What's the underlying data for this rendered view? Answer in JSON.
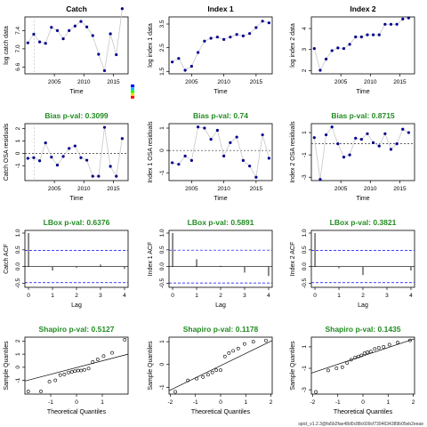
{
  "footer": "spict_v1.2.3@fa5b2fae48d0c88c609cf7394634389b05eb2eeae",
  "colors": {
    "point": "#00008B",
    "title_black": "#000000",
    "title_green": "#228B22",
    "ref_line": "#0000FF",
    "line": "#c8c8c8",
    "axes": "#000000"
  },
  "legend_colors": [
    "#0000FF",
    "#00BFFF",
    "#00FF00",
    "#FFD700",
    "#FF0000"
  ],
  "chart_data": [
    {
      "type": "line",
      "title": "Catch",
      "title_color": "black",
      "xlabel": "Time",
      "ylabel": "log catch data",
      "xlim": [
        2000.0,
        2017.5
      ],
      "ylim": [
        6.45,
        7.7
      ],
      "xticks": [
        2005,
        2010,
        2015
      ],
      "yticks": [
        6.6,
        7.0,
        7.4
      ],
      "x": [
        2000.5,
        2001.5,
        2002.5,
        2003.5,
        2004.5,
        2005.5,
        2006.5,
        2007.5,
        2008.5,
        2009.5,
        2010.5,
        2011.5,
        2012.5,
        2013.5,
        2014.5,
        2015.5,
        2016.5
      ],
      "y": [
        7.13,
        7.32,
        7.15,
        7.12,
        7.47,
        7.4,
        7.22,
        7.4,
        7.5,
        7.6,
        7.48,
        7.29,
        6.88,
        6.52,
        7.33,
        6.87,
        7.88
      ],
      "vline": 2001.6,
      "legend": true
    },
    {
      "type": "line",
      "title": "Index 1",
      "title_color": "black",
      "xlabel": "Time",
      "ylabel": "log index 1 data",
      "xlim": [
        2001.5,
        2017.5
      ],
      "ylim": [
        1.4,
        3.8
      ],
      "xticks": [
        2005,
        2010,
        2015
      ],
      "yticks": [
        1.5,
        2.5,
        3.5
      ],
      "x": [
        2002.0,
        2003.0,
        2004.0,
        2005.0,
        2006.0,
        2007.0,
        2008.0,
        2009.0,
        2010.0,
        2011.0,
        2012.0,
        2013.0,
        2014.0,
        2015.0,
        2016.0,
        2017.0
      ],
      "y": [
        1.9,
        2.05,
        1.55,
        1.72,
        2.3,
        2.78,
        2.9,
        2.95,
        2.85,
        2.95,
        3.06,
        3.0,
        3.1,
        3.35,
        3.62,
        3.55
      ]
    },
    {
      "type": "line",
      "title": "Index 2",
      "title_color": "black",
      "xlabel": "Time",
      "ylabel": "log index 2 data",
      "xlim": [
        2000.0,
        2017.5
      ],
      "ylim": [
        1.85,
        4.55
      ],
      "xticks": [
        2005,
        2010,
        2015
      ],
      "yticks": [
        2.0,
        3.0,
        4.0
      ],
      "x": [
        2000.5,
        2001.5,
        2002.5,
        2003.5,
        2004.5,
        2005.5,
        2006.5,
        2007.5,
        2008.5,
        2009.5,
        2010.5,
        2011.5,
        2012.5,
        2013.5,
        2014.5,
        2015.5,
        2016.5
      ],
      "y": [
        3.05,
        2.02,
        2.55,
        2.95,
        3.08,
        3.05,
        3.25,
        3.6,
        3.6,
        3.7,
        3.7,
        3.7,
        4.2,
        4.2,
        4.2,
        4.45,
        4.5
      ]
    },
    {
      "type": "line",
      "title": "Bias p-val: 0.3099",
      "title_color": "green",
      "xlabel": "Time",
      "ylabel": "Catch OSA residuals",
      "xlim": [
        2000.0,
        2017.5
      ],
      "ylim": [
        -2.2,
        2.4
      ],
      "xticks": [
        2005,
        2010,
        2015
      ],
      "yticks": [
        -1,
        0,
        1,
        2
      ],
      "x": [
        2000.5,
        2001.5,
        2002.5,
        2003.5,
        2004.5,
        2005.5,
        2006.5,
        2007.5,
        2008.5,
        2009.5,
        2010.5,
        2011.5,
        2012.5,
        2013.5,
        2014.5,
        2015.5,
        2016.5
      ],
      "y": [
        -0.4,
        -0.35,
        -0.6,
        0.85,
        -0.3,
        -0.95,
        -0.25,
        0.4,
        0.6,
        -0.35,
        -0.55,
        -1.85,
        -1.85,
        2.1,
        -1.05,
        -1.85,
        1.2
      ],
      "vline": 2001.6,
      "hline": 0
    },
    {
      "type": "line",
      "title": "Bias p-val: 0.74",
      "title_color": "green",
      "xlabel": "Time",
      "ylabel": "Index 1 OSA residuals",
      "xlim": [
        2001.5,
        2017.5
      ],
      "ylim": [
        -1.35,
        1.2
      ],
      "xticks": [
        2005,
        2010,
        2015
      ],
      "yticks": [
        -1.0,
        0.0,
        1.0
      ],
      "x": [
        2002.0,
        2003.0,
        2004.0,
        2005.0,
        2006.0,
        2007.0,
        2008.0,
        2009.0,
        2010.0,
        2011.0,
        2012.0,
        2013.0,
        2014.0,
        2015.0,
        2016.0,
        2017.0
      ],
      "y": [
        -0.55,
        -0.62,
        -0.25,
        -0.45,
        1.05,
        1.0,
        0.5,
        0.9,
        -0.25,
        0.35,
        0.6,
        -0.45,
        -0.7,
        -1.2,
        0.7,
        -0.35
      ],
      "hline": 0
    },
    {
      "type": "line",
      "title": "Bias p-val: 0.8715",
      "title_color": "green",
      "xlabel": "Time",
      "ylabel": "Index 2 OSA residuals",
      "xlim": [
        2000.0,
        2017.5
      ],
      "ylim": [
        -3.3,
        1.8
      ],
      "xticks": [
        2005,
        2010,
        2015
      ],
      "yticks": [
        -3,
        -1,
        1
      ],
      "x": [
        2000.5,
        2001.5,
        2002.5,
        2003.5,
        2004.5,
        2005.5,
        2006.5,
        2007.5,
        2008.5,
        2009.5,
        2010.5,
        2011.5,
        2012.5,
        2013.5,
        2014.5,
        2015.5,
        2016.5
      ],
      "y": [
        0.55,
        -3.2,
        0.8,
        1.5,
        0.0,
        -1.2,
        -1.0,
        0.5,
        0.4,
        0.9,
        0.1,
        -0.2,
        0.9,
        -0.5,
        0.0,
        1.3,
        1.0
      ],
      "hline": 0
    },
    {
      "type": "acf",
      "title": "LBox p-val: 0.6376",
      "title_color": "green",
      "xlabel": "Lag",
      "ylabel": "Catch ACF",
      "xlim": [
        -0.15,
        4.15
      ],
      "ylim": [
        -0.62,
        1.08
      ],
      "xticks": [
        0,
        1,
        2,
        3,
        4
      ],
      "yticks": [
        -0.5,
        0.0,
        0.5,
        1.0
      ],
      "lags": [
        0,
        1,
        2,
        3,
        4
      ],
      "acf": [
        1.0,
        -0.12,
        -0.04,
        0.06,
        -0.07
      ],
      "conf": 0.48
    },
    {
      "type": "acf",
      "title": "LBox p-val: 0.5891",
      "title_color": "green",
      "xlabel": "Lag",
      "ylabel": "Index 1 ACF",
      "xlim": [
        -0.15,
        4.15
      ],
      "ylim": [
        -0.62,
        1.08
      ],
      "xticks": [
        0,
        1,
        2,
        3,
        4
      ],
      "yticks": [
        -0.5,
        0.0,
        0.5,
        1.0
      ],
      "lags": [
        0,
        1,
        2,
        3,
        4
      ],
      "acf": [
        1.0,
        0.22,
        0.02,
        -0.18,
        -0.28
      ],
      "conf": 0.49
    },
    {
      "type": "acf",
      "title": "LBox p-val: 0.3821",
      "title_color": "green",
      "xlabel": "Lag",
      "ylabel": "Index 2 ACF",
      "xlim": [
        -0.15,
        4.15
      ],
      "ylim": [
        -0.62,
        1.08
      ],
      "xticks": [
        0,
        1,
        2,
        3,
        4
      ],
      "yticks": [
        -0.5,
        0.0,
        0.5,
        1.0
      ],
      "lags": [
        0,
        1,
        2,
        3,
        4
      ],
      "acf": [
        1.0,
        -0.05,
        -0.25,
        0.0,
        -0.12
      ],
      "conf": 0.48
    },
    {
      "type": "scatter",
      "title": "Shapiro p-val: 0.5127",
      "title_color": "green",
      "xlabel": "Theoretical Quantiles",
      "ylabel": "Sample Quantiles",
      "xlim": [
        -2.0,
        2.0
      ],
      "ylim": [
        -2.05,
        2.3
      ],
      "xticks": [
        -1,
        0,
        1
      ],
      "yticks": [
        -1,
        0,
        1,
        2
      ],
      "x": [
        -1.87,
        -1.38,
        -1.05,
        -0.82,
        -0.63,
        -0.47,
        -0.31,
        -0.18,
        -0.06,
        0.06,
        0.18,
        0.31,
        0.47,
        0.63,
        0.82,
        1.05,
        1.38,
        1.87
      ],
      "y": [
        -1.85,
        -1.85,
        -1.1,
        -1.0,
        -0.6,
        -0.55,
        -0.4,
        -0.35,
        -0.3,
        -0.25,
        -0.25,
        -0.2,
        -0.1,
        0.4,
        0.6,
        0.85,
        1.1,
        2.1
      ],
      "qqline": [
        [
          -2.0,
          -1.05
        ],
        [
          2.0,
          1.0
        ]
      ]
    },
    {
      "type": "scatter",
      "title": "Shapiro p-val: 0.1178",
      "title_color": "green",
      "xlabel": "Theoretical Quantiles",
      "ylabel": "Sample Quantiles",
      "xlim": [
        -2.05,
        2.05
      ],
      "ylim": [
        -1.3,
        1.2
      ],
      "xticks": [
        -2,
        -1,
        0,
        1,
        2
      ],
      "yticks": [
        -1.0,
        0.0,
        1.0
      ],
      "x": [
        -1.8,
        -1.3,
        -0.95,
        -0.7,
        -0.5,
        -0.33,
        -0.17,
        0.0,
        0.17,
        0.33,
        0.5,
        0.7,
        0.95,
        1.3,
        1.8
      ],
      "y": [
        -1.2,
        -0.7,
        -0.62,
        -0.55,
        -0.45,
        -0.35,
        -0.25,
        -0.25,
        0.35,
        0.5,
        0.6,
        0.7,
        0.9,
        1.0,
        1.05
      ],
      "qqline": [
        [
          -2.05,
          -1.15
        ],
        [
          2.05,
          1.05
        ]
      ]
    },
    {
      "type": "scatter",
      "title": "Shapiro p-val: 0.1435",
      "title_color": "green",
      "xlabel": "Theoretical Quantiles",
      "ylabel": "Sample Quantiles",
      "xlim": [
        -2.05,
        2.05
      ],
      "ylim": [
        -3.4,
        1.9
      ],
      "xticks": [
        -2,
        -1,
        0,
        1,
        2
      ],
      "yticks": [
        -3,
        -1,
        1
      ],
      "x": [
        -1.87,
        -1.38,
        -1.05,
        -0.82,
        -0.63,
        -0.47,
        -0.31,
        -0.18,
        -0.06,
        0.06,
        0.18,
        0.31,
        0.47,
        0.63,
        0.82,
        1.05,
        1.38,
        1.87
      ],
      "y": [
        -3.2,
        -1.2,
        -1.0,
        -0.9,
        -0.5,
        -0.2,
        0.0,
        0.1,
        0.2,
        0.4,
        0.5,
        0.55,
        0.8,
        0.9,
        1.0,
        1.2,
        1.4,
        1.6
      ],
      "qqline": [
        [
          -2.05,
          -1.45
        ],
        [
          2.05,
          1.75
        ]
      ]
    }
  ]
}
